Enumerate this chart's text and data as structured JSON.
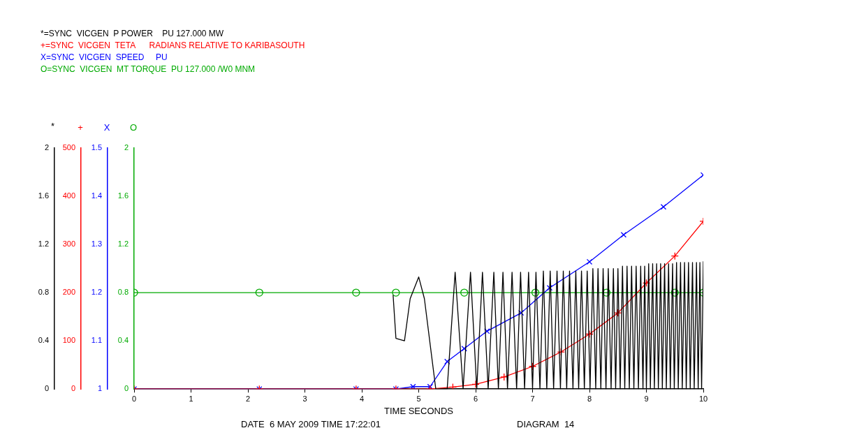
{
  "chart_data": {
    "type": "line",
    "xlabel": "TIME SECONDS",
    "ylabel": "O",
    "y2label": "+",
    "y3label": "X",
    "annotations": [
      "*",
      "0",
      "0.4",
      "0.8",
      "1.2",
      "1.6",
      "2",
      "DATE  6 MAY 2009 TIME 17:22:01",
      "DIAGRAM  14"
    ],
    "xlim": [
      0,
      10
    ],
    "xticks": [
      0,
      1,
      2,
      3,
      4,
      5,
      6,
      7,
      8,
      9,
      10
    ],
    "ylim": [
      0,
      2
    ],
    "yticks": [
      0,
      0.4,
      0.8,
      1.2,
      1.6,
      2
    ],
    "y2lim": [
      0,
      500
    ],
    "y2ticks": [
      0,
      100,
      200,
      300,
      400,
      500
    ],
    "y3lim": [
      1,
      1.5
    ],
    "y3ticks": [
      1,
      1.1,
      1.2,
      1.3,
      1.4,
      1.5
    ],
    "grid": false,
    "legend": "top left",
    "line_style": "solid",
    "series": [
      {
        "name": "*=SYNC  VICGEN  P POWER    PU 127.000 MW",
        "color": "#000000",
        "marker": "none",
        "x": [
          4.55,
          4.6,
          4.75,
          4.85,
          5.0,
          5.1,
          5.3,
          5.5,
          5.64,
          5.78,
          5.91,
          6.02,
          6.12,
          6.22,
          6.32,
          6.4,
          6.48,
          6.56,
          6.64,
          6.72,
          6.79,
          6.86,
          6.93,
          7.0,
          7.06,
          7.13,
          7.19,
          7.25,
          7.31,
          7.37,
          7.43,
          7.49,
          7.54,
          7.6,
          7.65,
          7.71,
          7.76,
          7.81,
          7.86,
          7.91,
          7.96,
          8.01,
          8.06,
          8.11,
          8.15,
          8.2,
          8.24,
          8.29,
          8.33,
          8.38,
          8.42,
          8.46,
          8.5,
          8.54,
          8.58,
          8.62,
          8.66,
          8.7,
          8.74,
          8.78,
          8.82,
          8.86,
          8.9,
          8.94,
          8.97,
          9.0,
          9.04,
          9.07,
          9.11,
          9.14,
          9.18,
          9.21,
          9.25,
          9.28,
          9.32,
          9.35,
          9.39,
          9.42,
          9.46,
          9.49,
          9.53,
          9.56,
          9.6,
          9.63,
          9.67,
          9.7,
          9.74,
          9.77,
          9.81,
          9.84,
          9.88,
          9.91,
          9.94,
          9.97,
          10
        ],
        "values": [
          0.78,
          0.42,
          0.4,
          0.75,
          0.93,
          0.75,
          0,
          0,
          0.97,
          0,
          0.97,
          0,
          0.97,
          0,
          0.97,
          0,
          0.97,
          0,
          0.97,
          0,
          0.97,
          0,
          0.97,
          0,
          0.97,
          0,
          0.98,
          0,
          0.98,
          0,
          0.98,
          0,
          0.98,
          0,
          0.98,
          0,
          0.98,
          0,
          0.98,
          0,
          0.98,
          0,
          1.0,
          0,
          1.0,
          0,
          1.0,
          0,
          1.0,
          0,
          1.0,
          0,
          1.0,
          0,
          1.02,
          0,
          1.02,
          0,
          1.02,
          0,
          1.02,
          0,
          1.02,
          0,
          1.02,
          0,
          1.04,
          0,
          1.04,
          0,
          1.04,
          0,
          1.04,
          0,
          1.04,
          0,
          1.04,
          0,
          1.04,
          0,
          1.05,
          0,
          1.05,
          0,
          1.05,
          0,
          1.05,
          0,
          1.05,
          0,
          1.05,
          0,
          1.05,
          0,
          1.06
        ]
      },
      {
        "name": "+=SYNC  VICGEN  TETA      RADIANS RELATIVE TO KARIBASOUTH",
        "color": "#ff0000",
        "marker": "cross",
        "axis": "y2",
        "x": [
          0,
          2.2,
          3.9,
          4.6,
          5.2,
          5.6,
          6,
          6.5,
          7,
          7.5,
          8,
          8.5,
          9,
          9.5,
          10
        ],
        "values": [
          0,
          0,
          0,
          0,
          0,
          4,
          10,
          25,
          47,
          77,
          114,
          158,
          220,
          276,
          348
        ]
      },
      {
        "name": "X=SYNC  VICGEN  SPEED     PU",
        "color": "#0000ff",
        "marker": "crossRot",
        "axis": "y3",
        "x": [
          0,
          2.2,
          3.9,
          4.6,
          4.9,
          5.2,
          5.5,
          5.8,
          6.2,
          6.8,
          7.3,
          8.0,
          8.6,
          9.3,
          10
        ],
        "values": [
          1,
          1,
          1,
          1,
          1.005,
          1.005,
          1.057,
          1.084,
          1.12,
          1.158,
          1.21,
          1.264,
          1.32,
          1.378,
          1.444
        ]
      },
      {
        "name": "O=SYNC  VICGEN  MT TORQUE  PU 127.000 /W0 MNM",
        "color": "#00aa00",
        "marker": "circle",
        "x": [
          0,
          2.2,
          3.9,
          4.6,
          5.8,
          7.05,
          8.3,
          9.5,
          10
        ],
        "values": [
          0.8,
          0.8,
          0.8,
          0.8,
          0.8,
          0.8,
          0.8,
          0.8,
          0.8
        ]
      }
    ]
  }
}
